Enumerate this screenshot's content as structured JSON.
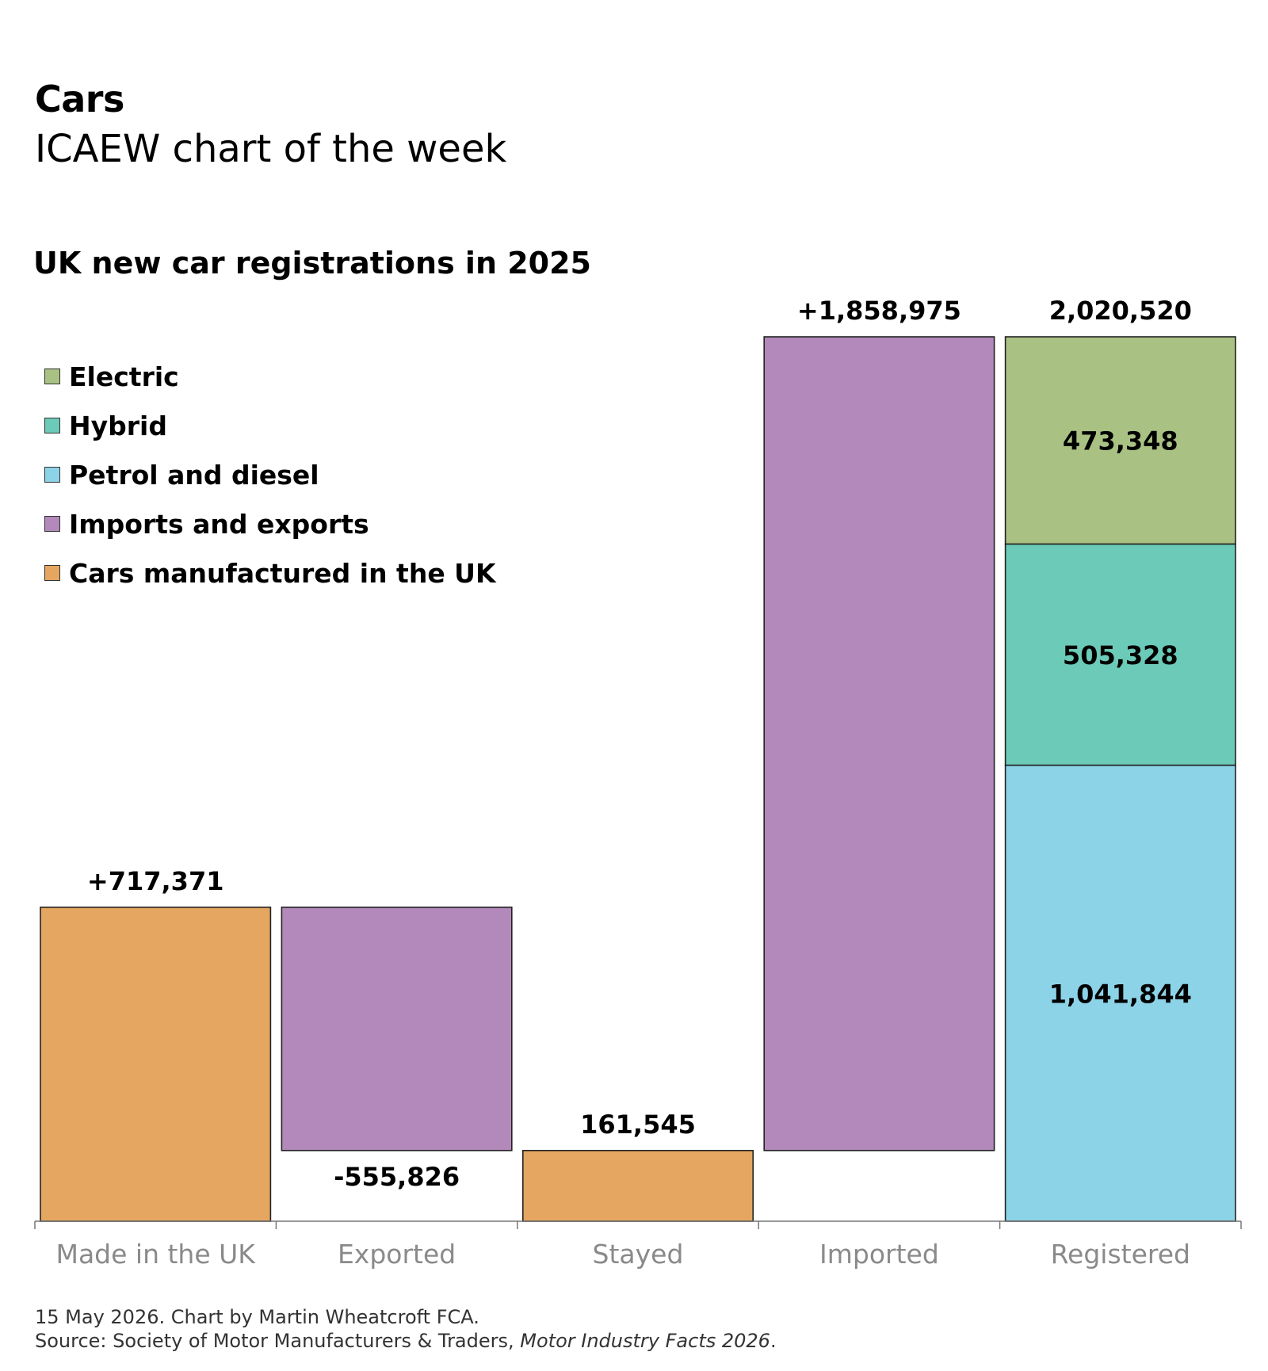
{
  "header": {
    "title": "Cars",
    "subtitle": "ICAEW chart of the week"
  },
  "footer": {
    "line1": "15 May 2026.   Chart by Martin Wheatcroft FCA.",
    "line2_prefix": "Source: Society of Motor Manufacturers & Traders, ",
    "line2_italic": "Motor Industry Facts 2026",
    "line2_suffix": "."
  },
  "colors": {
    "electric": "#a9c283",
    "hybrid": "#6ccab8",
    "petrol_diesel": "#8dd3e8",
    "imports_exports": "#b289ba",
    "uk_manufactured": "#e4a660"
  },
  "chart_data": {
    "type": "bar",
    "title": "UK new car registrations in 2025",
    "xlabel": "",
    "ylabel": "",
    "ylim": [
      0,
      2020520
    ],
    "grid": false,
    "legend_placement": "top-left",
    "legend": [
      {
        "name": "Electric",
        "color_key": "electric"
      },
      {
        "name": "Hybrid",
        "color_key": "hybrid"
      },
      {
        "name": "Petrol and diesel",
        "color_key": "petrol_diesel"
      },
      {
        "name": "Imports and exports",
        "color_key": "imports_exports"
      },
      {
        "name": "Cars manufactured in the UK",
        "color_key": "uk_manufactured"
      }
    ],
    "categories": [
      "Made in the UK",
      "Exported",
      "Stayed",
      "Imported",
      "Registered"
    ],
    "bars": [
      {
        "category": "Made in the UK",
        "segments": [
          {
            "from": 0,
            "to": 717371,
            "color_key": "uk_manufactured"
          }
        ],
        "label": "+717,371",
        "label_position": "above"
      },
      {
        "category": "Exported",
        "segments": [
          {
            "from": 161545,
            "to": 717371,
            "color_key": "imports_exports"
          }
        ],
        "label": "-555,826",
        "label_position": "below"
      },
      {
        "category": "Stayed",
        "segments": [
          {
            "from": 0,
            "to": 161545,
            "color_key": "uk_manufactured"
          }
        ],
        "label": "161,545",
        "label_position": "above"
      },
      {
        "category": "Imported",
        "segments": [
          {
            "from": 161545,
            "to": 2020520,
            "color_key": "imports_exports"
          }
        ],
        "label": "+1,858,975",
        "label_position": "above"
      },
      {
        "category": "Registered",
        "segments": [
          {
            "from": 0,
            "to": 1041844,
            "color_key": "petrol_diesel",
            "label": "1,041,844"
          },
          {
            "from": 1041844,
            "to": 1547172,
            "color_key": "hybrid",
            "label": "505,328"
          },
          {
            "from": 1547172,
            "to": 2020520,
            "color_key": "electric",
            "label": "473,348"
          }
        ],
        "label": "2,020,520",
        "label_position": "above"
      }
    ]
  }
}
